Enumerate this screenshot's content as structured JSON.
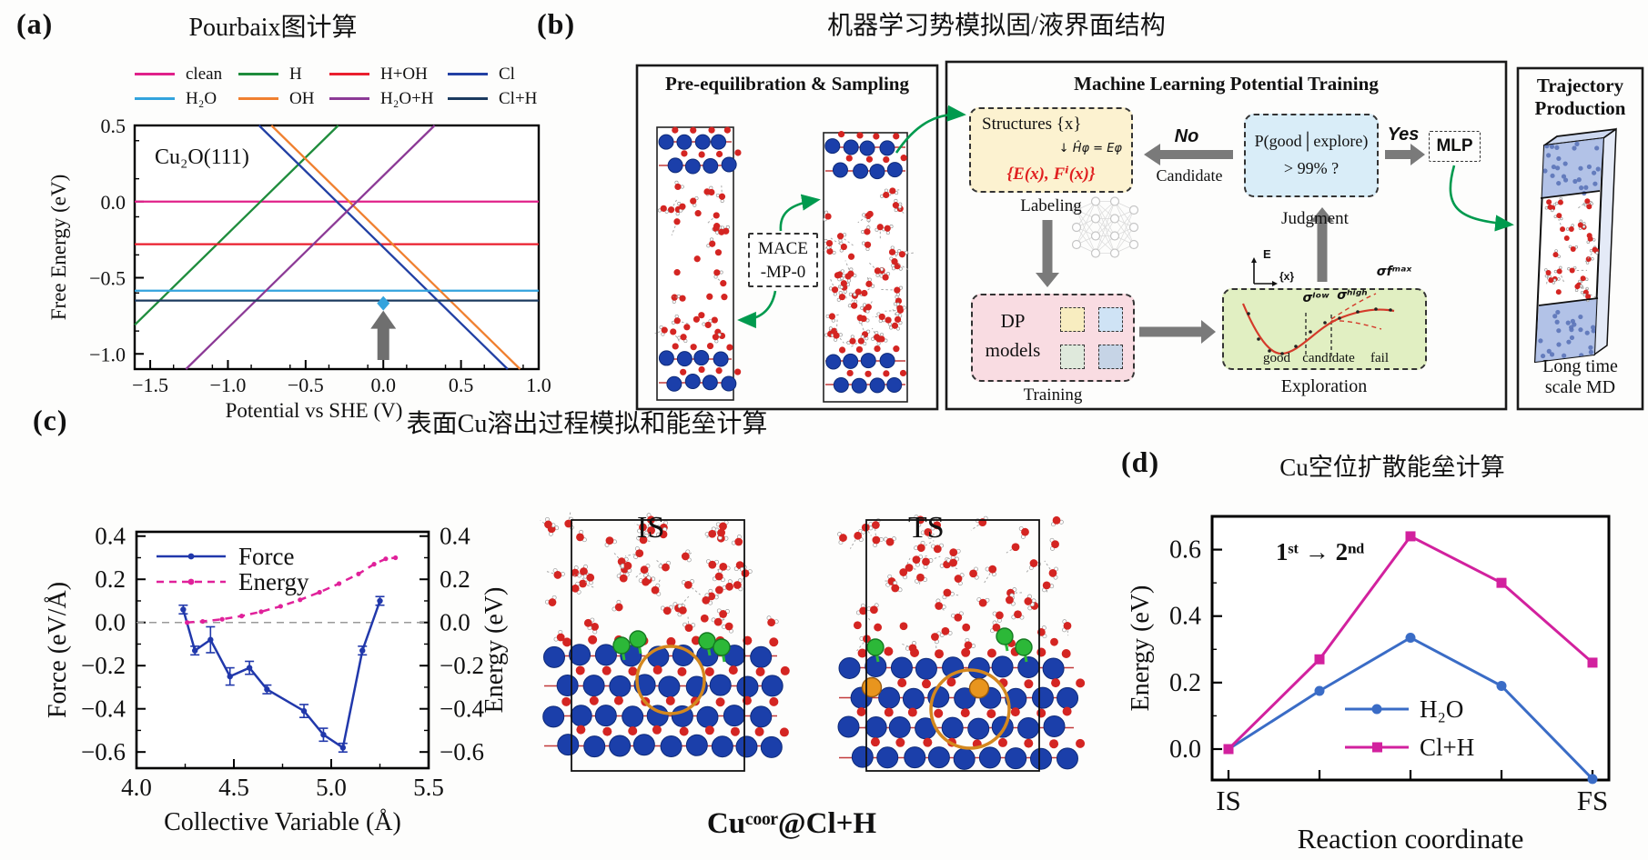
{
  "panels": {
    "a": {
      "label": "(a)",
      "title": "Pourbaix图计算",
      "annotation": "Cu₂O(111)",
      "legend": [
        {
          "label": "clean",
          "color": "#e0218a"
        },
        {
          "label": "H",
          "color": "#1e8c3c"
        },
        {
          "label": "H+OH",
          "color": "#ea1f2e"
        },
        {
          "label": "Cl",
          "color": "#2240a4"
        },
        {
          "label": "H₂O",
          "color": "#33a3dd"
        },
        {
          "label": "OH",
          "color": "#f08030"
        },
        {
          "label": "H₂O+H",
          "color": "#8c3a96"
        },
        {
          "label": "Cl+H",
          "color": "#1b3a5f"
        }
      ],
      "chart_data": {
        "type": "line",
        "xlabel": "Potential vs SHE (V)",
        "ylabel": "Free Energy (eV)",
        "xlim": [
          -1.6,
          1.0
        ],
        "ylim": [
          -1.1,
          0.5
        ],
        "xticks": [
          -1.5,
          -1.0,
          -0.5,
          0.0,
          0.5,
          1.0
        ],
        "yticks": [
          0.5,
          0.0,
          -0.5,
          -1.0
        ],
        "minor_x": 0.25,
        "minor_y": 0.25,
        "grid": false,
        "legend_position": "above",
        "series": [
          {
            "name": "clean",
            "color": "#e0218a",
            "points": [
              [
                -1.6,
                0.0
              ],
              [
                1.0,
                0.0
              ]
            ]
          },
          {
            "name": "H",
            "color": "#1e8c3c",
            "points": [
              [
                -1.6,
                -0.81
              ],
              [
                -0.29,
                0.5
              ]
            ]
          },
          {
            "name": "H+OH",
            "color": "#ea1f2e",
            "points": [
              [
                -1.6,
                -0.28
              ],
              [
                1.0,
                -0.28
              ]
            ]
          },
          {
            "name": "Cl",
            "color": "#2240a4",
            "points": [
              [
                -0.8,
                0.5
              ],
              [
                0.8,
                -1.1
              ]
            ]
          },
          {
            "name": "H₂O",
            "color": "#33a3dd",
            "points": [
              [
                -1.6,
                -0.585
              ],
              [
                1.0,
                -0.585
              ]
            ]
          },
          {
            "name": "OH",
            "color": "#f08030",
            "points": [
              [
                -0.72,
                0.5
              ],
              [
                0.88,
                -1.1
              ]
            ]
          },
          {
            "name": "H₂O+H",
            "color": "#8c3a96",
            "points": [
              [
                -1.27,
                -1.1
              ],
              [
                0.33,
                0.5
              ]
            ]
          },
          {
            "name": "Cl+H",
            "color": "#1b3a5f",
            "points": [
              [
                -1.6,
                -0.65
              ],
              [
                1.0,
                -0.65
              ]
            ]
          }
        ],
        "arrow": {
          "x": 0.0,
          "y_from": -1.04,
          "y_to": -0.68,
          "color": "#6f6f6f",
          "tip_color": "#33a3dd"
        }
      }
    },
    "b": {
      "label": "(b)",
      "title": "机器学习势模拟固/液界面结构",
      "pre": {
        "title": "Pre-equilibration & Sampling",
        "mace1": "MACE",
        "mace2": "-MP-0"
      },
      "ml": {
        "title": "Machine Learning Potential Training",
        "structures_title": "Structures {x}",
        "structures_eq": "↓ Ĥφ = Eφ",
        "structures_ef": "{E(x), Fⁱ(x)}",
        "labeling": "Labeling",
        "no": "No",
        "candidate": "Candidate",
        "judgment1": "P(good│explore)",
        "judgment2": "> 99% ?",
        "judgment": "Judgment",
        "yes": "Yes",
        "mlp": "MLP",
        "dp1": "DP",
        "dp2": "models",
        "training": "Training",
        "exploration": "Exploration",
        "axis_e": "E",
        "axis_x": "{x}",
        "sigma_low": "σˡᵒʷ",
        "sigma_high": "σʰⁱᵍʰ",
        "sigma_max": "σfᵐᵃˣ",
        "good": "good",
        "cand": "candidate",
        "fail": "fail",
        "square_colors": [
          "#f8edc0",
          "#cfe3f5",
          "#dfe9dc",
          "#c6d4e6"
        ]
      },
      "traj": {
        "title1": "Trajectory",
        "title2": "Production",
        "foot1": "Long time",
        "foot2": "scale MD"
      },
      "colors": {
        "arrow_gray": "#7a7a7a",
        "arrow_green": "#009a4e",
        "structures_fill": "#fcf2d0",
        "judgment_fill": "#d9edf8",
        "dp_fill": "#f9dce2",
        "exploration_fill": "#e1efc2",
        "cu": "#1b3faa",
        "o": "#d42522",
        "h": "#ffffff",
        "cl": "#2cb838",
        "highlight": "#d4881e",
        "slab_face": "#aebfe6"
      }
    },
    "c": {
      "label": "(c)",
      "title": "表面Cu溶出过程模拟和能垒计算",
      "is_label": "IS",
      "ts_label": "TS",
      "caption": "Cuᶜᵒᵒʳ@Cl+H",
      "chart_data": {
        "type": "line",
        "xlabel": "Collective Variable (Å)",
        "ylabel_left": "Force (eV/Å)",
        "ylabel_right": "Energy (eV)",
        "xlim": [
          4.0,
          5.5
        ],
        "ylim": [
          -0.675,
          0.42
        ],
        "xticks": [
          4.0,
          4.5,
          5.0,
          5.5
        ],
        "yticks": [
          0.4,
          0.2,
          0.0,
          -0.2,
          -0.4,
          -0.6
        ],
        "minor_x": 0.25,
        "minor_y": 0.1,
        "zero_line": true,
        "grid": false,
        "legend_position": "upper-left",
        "series": [
          {
            "name": "Force",
            "color": "#2138ab",
            "style": "solid",
            "marker": "dot",
            "x": [
              4.24,
              4.3,
              4.38,
              4.48,
              4.58,
              4.67,
              4.86,
              4.96,
              5.06,
              5.16,
              5.25
            ],
            "y": [
              0.06,
              -0.13,
              -0.08,
              -0.25,
              -0.21,
              -0.31,
              -0.41,
              -0.52,
              -0.58,
              -0.13,
              0.1
            ],
            "yerr": [
              0.02,
              0.02,
              0.06,
              0.04,
              0.03,
              0.02,
              0.03,
              0.03,
              0.02,
              0.02,
              0.02
            ]
          },
          {
            "name": "Energy",
            "color": "#e0219a",
            "style": "dashed",
            "marker": "dot",
            "x": [
              4.26,
              4.34,
              4.44,
              4.54,
              4.64,
              4.74,
              4.84,
              4.94,
              5.04,
              5.14,
              5.22,
              5.28,
              5.33
            ],
            "y": [
              0.0,
              0.005,
              0.015,
              0.03,
              0.05,
              0.075,
              0.105,
              0.14,
              0.18,
              0.225,
              0.27,
              0.295,
              0.3
            ]
          }
        ]
      }
    },
    "d": {
      "label": "(d)",
      "title": "Cu空位扩散能垒计算",
      "annotation": "1ˢᵗ → 2ⁿᵈ",
      "chart_data": {
        "type": "line",
        "xlabel": "Reaction coordinate",
        "ylabel": "Energy (eV)",
        "categories": [
          "IS",
          "",
          "",
          "",
          "FS"
        ],
        "ylim": [
          -0.093,
          0.7
        ],
        "yticks": [
          0.6,
          0.4,
          0.2,
          0.0
        ],
        "minor_y": 0.1,
        "grid": false,
        "legend_position": "center-right",
        "series": [
          {
            "name": "H₂O",
            "color": "#3a6cc6",
            "marker": "circle",
            "values": [
              0.0,
              0.175,
              0.335,
              0.19,
              -0.09
            ]
          },
          {
            "name": "Cl+H",
            "color": "#d2219e",
            "marker": "square",
            "values": [
              0.0,
              0.27,
              0.64,
              0.5,
              0.26
            ]
          }
        ]
      }
    }
  }
}
